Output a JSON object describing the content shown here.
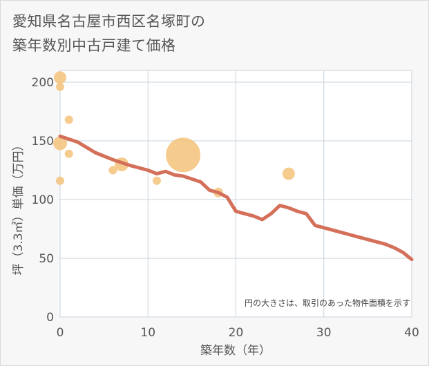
{
  "title_lines": [
    "愛知県名古屋市西区名塚町の",
    "築年数別中古戸建て価格"
  ],
  "chart_data": {
    "type": "scatter+line",
    "title": "愛知県名古屋市西区名塚町の築年数別中古戸建て価格",
    "xlabel": "築年数（年）",
    "ylabel": "坪（3.3㎡）単価（万円）",
    "xlim": [
      0,
      40
    ],
    "ylim": [
      0,
      210
    ],
    "xticks": [
      0,
      10,
      20,
      30,
      40
    ],
    "yticks": [
      0,
      50,
      100,
      150,
      200
    ],
    "grid": true,
    "note": "円の大きさは、取引のあった物件面積を示す",
    "colors": {
      "bubble": "#f5c27a",
      "line": "#d4705a",
      "grid": "#c8d3dc",
      "text": "#555555"
    },
    "bubbles": [
      {
        "x": 0,
        "y": 204,
        "size": 9
      },
      {
        "x": 0,
        "y": 196,
        "size": 6
      },
      {
        "x": 0,
        "y": 148,
        "size": 10
      },
      {
        "x": 0,
        "y": 116,
        "size": 6
      },
      {
        "x": 1,
        "y": 168,
        "size": 6
      },
      {
        "x": 1,
        "y": 139,
        "size": 6
      },
      {
        "x": 6,
        "y": 125,
        "size": 6
      },
      {
        "x": 7,
        "y": 130,
        "size": 10
      },
      {
        "x": 11,
        "y": 116,
        "size": 6
      },
      {
        "x": 14,
        "y": 138,
        "size": 25
      },
      {
        "x": 18,
        "y": 106,
        "size": 7
      },
      {
        "x": 26,
        "y": 122,
        "size": 9
      }
    ],
    "trend_line": {
      "x": [
        0,
        2,
        4,
        6,
        8,
        10,
        11,
        12,
        13,
        14,
        16,
        17,
        18,
        19,
        20,
        21,
        22,
        23,
        24,
        25,
        26,
        27,
        28,
        29,
        30,
        31,
        32,
        33,
        34,
        35,
        36,
        37,
        38,
        39,
        40
      ],
      "y": [
        154,
        149,
        140,
        134,
        129,
        125,
        122,
        124,
        121,
        120,
        115,
        108,
        106,
        102,
        90,
        88,
        86,
        83,
        88,
        95,
        93,
        90,
        88,
        78,
        76,
        74,
        72,
        70,
        68,
        66,
        64,
        62,
        59,
        55,
        49
      ]
    }
  }
}
